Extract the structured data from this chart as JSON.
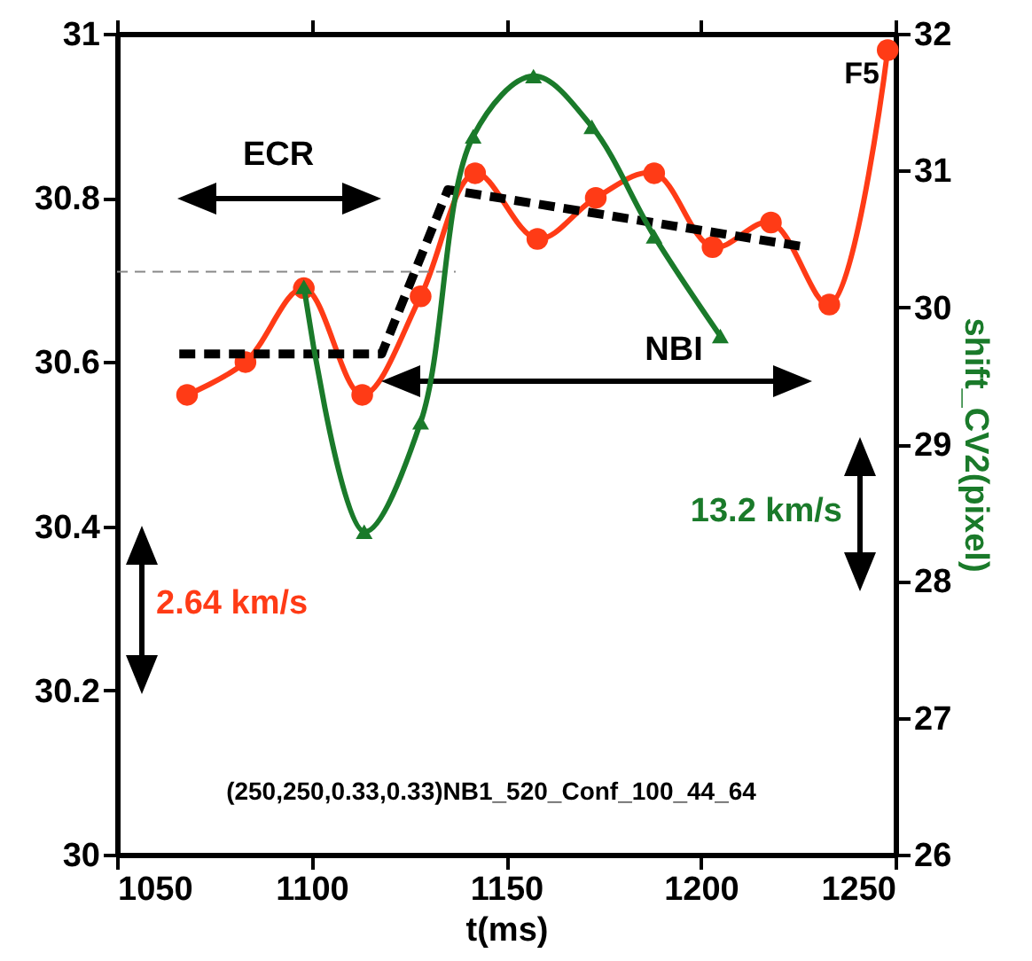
{
  "chart_data": {
    "type": "line",
    "xlabel": "t(ms)",
    "y2label": "shift_CV2(pixel)",
    "xlim": [
      1050,
      1250
    ],
    "xticks": [
      1050,
      1100,
      1150,
      1200,
      1250
    ],
    "ylim": [
      30,
      31
    ],
    "yticks": [
      30,
      30.2,
      30.4,
      30.6,
      30.8,
      31
    ],
    "y2lim": [
      26,
      32
    ],
    "y2ticks": [
      26,
      27,
      28,
      29,
      30,
      31,
      32
    ],
    "grid": false,
    "line_style": "solid",
    "series": [
      {
        "color": "#ff3b16",
        "marker": "circle",
        "x": [
          1068,
          1083,
          1098,
          1113,
          1128,
          1142,
          1158,
          1173,
          1188,
          1203,
          1218,
          1233,
          1248
        ],
        "values": [
          30.56,
          30.6,
          30.69,
          30.56,
          30.68,
          30.83,
          30.75,
          30.8,
          30.83,
          30.74,
          30.77,
          30.67,
          30.98
        ]
      },
      {
        "color": "#1a7a2a",
        "marker": "triangle",
        "axis": "y2",
        "x": [
          1098,
          1113.5,
          1128,
          1141.5,
          1157,
          1172,
          1188,
          1205
        ],
        "values": [
          30.15,
          28.36,
          29.16,
          31.25,
          31.69,
          31.32,
          30.52,
          29.79
        ]
      },
      {
        "color": "#000000",
        "marker": "none",
        "line_style": "dashed",
        "x": [
          1066,
          1118,
          1135,
          1227
        ],
        "values": [
          30.61,
          30.61,
          30.81,
          30.74
        ]
      },
      {
        "color": "#888888",
        "marker": "none",
        "line_style": "dashed",
        "x": [
          1050,
          1137
        ],
        "values": [
          30.71,
          30.71
        ]
      }
    ],
    "annotations": [
      "ECR",
      "NBI",
      "F5",
      "2.64 km/s",
      "13.2 km/s",
      "(250,250,0.33,0.33)NB1_520_Conf_100_44_64"
    ]
  }
}
